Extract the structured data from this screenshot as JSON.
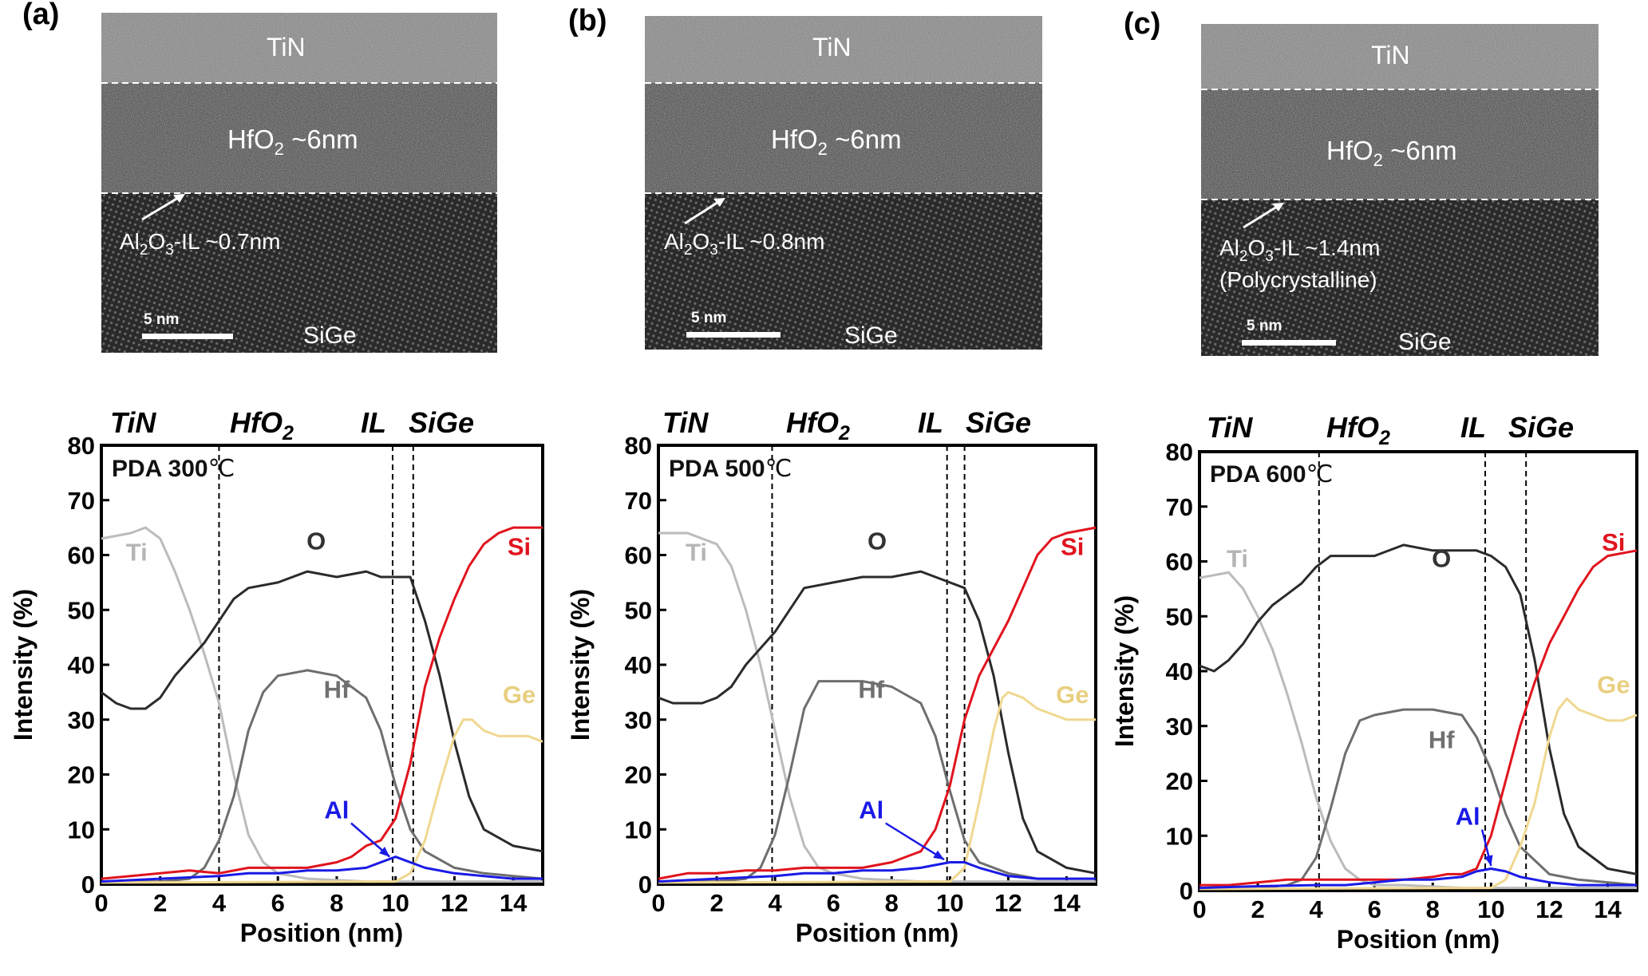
{
  "panels": [
    {
      "label": "(a)",
      "tem": {
        "top_layer": "TiN",
        "hfo2_main": "HfO",
        "hfo2_sub": "2",
        "hfo2_rest": " ~6nm",
        "il_a": "Al",
        "il_sub1": "2",
        "il_b": "O",
        "il_sub2": "3",
        "il_rest": "-IL ~0.7nm",
        "il_note": "",
        "scale": "5 nm",
        "substrate": "SiGe"
      },
      "plot": {
        "pda": "PDA 300",
        "pda_unit": "℃",
        "regions": {
          "tin": "TiN",
          "hfo2": "HfO",
          "hfo2_sub": "2",
          "il": "IL",
          "sige": "SiGe"
        },
        "boundaries": [
          4.0,
          9.9,
          10.6
        ]
      }
    },
    {
      "label": "(b)",
      "tem": {
        "top_layer": "TiN",
        "hfo2_main": "HfO",
        "hfo2_sub": "2",
        "hfo2_rest": " ~6nm",
        "il_a": "Al",
        "il_sub1": "2",
        "il_b": "O",
        "il_sub2": "3",
        "il_rest": "-IL ~0.8nm",
        "il_note": "",
        "scale": "5 nm",
        "substrate": "SiGe"
      },
      "plot": {
        "pda": "PDA 500",
        "pda_unit": "℃",
        "regions": {
          "tin": "TiN",
          "hfo2": "HfO",
          "hfo2_sub": "2",
          "il": "IL",
          "sige": "SiGe"
        },
        "boundaries": [
          3.9,
          9.9,
          10.5
        ]
      }
    },
    {
      "label": "(c)",
      "tem": {
        "top_layer": "TiN",
        "hfo2_main": "HfO",
        "hfo2_sub": "2",
        "hfo2_rest": " ~6nm",
        "il_a": "Al",
        "il_sub1": "2",
        "il_b": "O",
        "il_sub2": "3",
        "il_rest": "-IL ~1.4nm",
        "il_note": "(Polycrystalline)",
        "scale": "5 nm",
        "substrate": "SiGe"
      },
      "plot": {
        "pda": "PDA 600",
        "pda_unit": "℃",
        "regions": {
          "tin": "TiN",
          "hfo2": "HfO",
          "hfo2_sub": "2",
          "il": "IL",
          "sige": "SiGe"
        },
        "boundaries": [
          4.1,
          9.8,
          11.2
        ]
      }
    }
  ],
  "chart_data": [
    {
      "type": "line",
      "title": "PDA 300℃",
      "xlabel": "Position (nm)",
      "ylabel": "Intensity (%)",
      "xlim": [
        0,
        15
      ],
      "ylim": [
        0,
        80
      ],
      "xticks": [
        0,
        2,
        4,
        6,
        8,
        10,
        12,
        14
      ],
      "yticks": [
        0,
        10,
        20,
        30,
        40,
        50,
        60,
        70,
        80
      ],
      "series": [
        {
          "name": "Ti",
          "color": "#bbbbbb",
          "x": [
            0,
            1,
            1.5,
            2,
            2.5,
            3,
            3.5,
            4,
            4.5,
            5,
            5.5,
            6,
            7,
            9,
            15
          ],
          "values": [
            63,
            64,
            65,
            63,
            57,
            50,
            42,
            33,
            20,
            9,
            4,
            2,
            1,
            0.5,
            0.5
          ]
        },
        {
          "name": "O",
          "color": "#2b2b2b",
          "x": [
            0,
            0.5,
            1,
            1.5,
            2,
            2.5,
            3,
            3.5,
            4,
            4.5,
            5,
            6,
            7,
            8,
            9,
            9.5,
            10,
            10.5,
            11,
            11.5,
            12,
            12.5,
            13,
            14,
            15
          ],
          "values": [
            35,
            33,
            32,
            32,
            34,
            38,
            41,
            44,
            48,
            52,
            54,
            55,
            57,
            56,
            57,
            56,
            56,
            56,
            48,
            38,
            26,
            16,
            10,
            7,
            6
          ]
        },
        {
          "name": "Hf",
          "color": "#6e6e6e",
          "x": [
            0,
            2,
            3,
            3.5,
            4,
            4.5,
            5,
            5.5,
            6,
            7,
            8,
            9,
            9.5,
            10,
            10.5,
            11,
            12,
            13,
            15
          ],
          "values": [
            0.5,
            0.5,
            1,
            3,
            8,
            16,
            28,
            35,
            38,
            39,
            38,
            34,
            28,
            18,
            10,
            6,
            3,
            2,
            1
          ]
        },
        {
          "name": "Si",
          "color": "#e0141e",
          "x": [
            0,
            1,
            2,
            3,
            4,
            5,
            6,
            7,
            8,
            8.5,
            9,
            9.5,
            10,
            10.5,
            11,
            11.5,
            12,
            12.5,
            13,
            13.5,
            14,
            15
          ],
          "values": [
            1,
            1.5,
            2,
            2.5,
            2,
            3,
            3,
            3,
            4,
            5,
            7,
            8,
            12,
            22,
            36,
            45,
            52,
            58,
            62,
            64,
            65,
            65
          ]
        },
        {
          "name": "Ge",
          "color": "#f0d890",
          "x": [
            0,
            10,
            10.5,
            11,
            11.5,
            12,
            12.3,
            12.6,
            13,
            13.5,
            14,
            14.5,
            15
          ],
          "values": [
            0.3,
            0.5,
            2,
            8,
            18,
            27,
            30,
            30,
            28,
            27,
            27,
            27,
            26
          ]
        },
        {
          "name": "Al",
          "color": "#1a1ae6",
          "x": [
            0,
            2,
            4,
            5,
            6,
            7,
            8,
            9,
            9.5,
            10,
            10.5,
            11,
            12,
            13,
            14,
            15
          ],
          "values": [
            0.5,
            1,
            1.5,
            2,
            2,
            2.5,
            2.5,
            3,
            4,
            5,
            4,
            3,
            2,
            1.5,
            1,
            1
          ]
        }
      ],
      "annotations": [
        "Ti",
        "O",
        "Hf",
        "Si",
        "Ge",
        "Al"
      ]
    },
    {
      "type": "line",
      "title": "PDA 500℃",
      "xlabel": "Position (nm)",
      "ylabel": "Intensity (%)",
      "xlim": [
        0,
        15
      ],
      "ylim": [
        0,
        80
      ],
      "xticks": [
        0,
        2,
        4,
        6,
        8,
        10,
        12,
        14
      ],
      "yticks": [
        0,
        10,
        20,
        30,
        40,
        50,
        60,
        70,
        80
      ],
      "series": [
        {
          "name": "Ti",
          "color": "#bbbbbb",
          "x": [
            0,
            1,
            1.5,
            2,
            2.5,
            3,
            3.5,
            4,
            4.5,
            5,
            5.5,
            6,
            7,
            9,
            15
          ],
          "values": [
            64,
            64,
            63,
            62,
            58,
            50,
            40,
            28,
            16,
            7,
            3,
            2,
            1,
            0.5,
            0.5
          ]
        },
        {
          "name": "O",
          "color": "#2b2b2b",
          "x": [
            0,
            0.5,
            1,
            1.5,
            2,
            2.5,
            3,
            3.5,
            4,
            4.5,
            5,
            6,
            7,
            8,
            9,
            9.5,
            10,
            10.5,
            11,
            11.5,
            12,
            12.5,
            13,
            14,
            15
          ],
          "values": [
            34,
            33,
            33,
            33,
            34,
            36,
            40,
            43,
            46,
            50,
            54,
            55,
            56,
            56,
            57,
            56,
            55,
            54,
            48,
            38,
            24,
            12,
            6,
            3,
            2
          ]
        },
        {
          "name": "Hf",
          "color": "#6e6e6e",
          "x": [
            0,
            2,
            3,
            3.5,
            4,
            4.5,
            5,
            5.5,
            6,
            7,
            8,
            9,
            9.5,
            10,
            10.5,
            11,
            12,
            13,
            15
          ],
          "values": [
            0.5,
            0.5,
            1,
            3,
            9,
            20,
            32,
            37,
            37,
            37,
            36,
            33,
            27,
            17,
            8,
            4,
            2,
            1,
            1
          ]
        },
        {
          "name": "Si",
          "color": "#e0141e",
          "x": [
            0,
            1,
            2,
            3,
            4,
            5,
            6,
            7,
            8,
            8.5,
            9,
            9.5,
            10,
            10.5,
            11,
            11.5,
            12,
            12.5,
            13,
            13.5,
            14,
            15
          ],
          "values": [
            1,
            2,
            2,
            2.5,
            2.5,
            3,
            3,
            3,
            4,
            5,
            6,
            10,
            18,
            30,
            38,
            43,
            48,
            54,
            60,
            63,
            64,
            65
          ]
        },
        {
          "name": "Ge",
          "color": "#f0d890",
          "x": [
            0,
            10,
            10.5,
            11,
            11.5,
            11.8,
            12,
            12.5,
            13,
            13.5,
            14,
            14.5,
            15
          ],
          "values": [
            0.3,
            0.5,
            3,
            15,
            28,
            34,
            35,
            34,
            32,
            31,
            30,
            30,
            30
          ]
        },
        {
          "name": "Al",
          "color": "#1a1ae6",
          "x": [
            0,
            2,
            4,
            5,
            6,
            7,
            8,
            9,
            9.5,
            10,
            10.5,
            11,
            12,
            13,
            14,
            15
          ],
          "values": [
            0.5,
            1,
            1.5,
            2,
            2,
            2.5,
            2.5,
            3,
            3.5,
            4,
            4,
            3,
            1.5,
            1,
            1,
            1
          ]
        }
      ],
      "annotations": [
        "Ti",
        "O",
        "Hf",
        "Si",
        "Ge",
        "Al"
      ]
    },
    {
      "type": "line",
      "title": "PDA 600℃",
      "xlabel": "Position (nm)",
      "ylabel": "Intensity (%)",
      "xlim": [
        0,
        15
      ],
      "ylim": [
        0,
        80
      ],
      "xticks": [
        0,
        2,
        4,
        6,
        8,
        10,
        12,
        14
      ],
      "yticks": [
        0,
        10,
        20,
        30,
        40,
        50,
        60,
        70,
        80
      ],
      "series": [
        {
          "name": "Ti",
          "color": "#bbbbbb",
          "x": [
            0,
            1,
            1.5,
            2,
            2.5,
            3,
            3.5,
            4,
            4.5,
            5,
            5.5,
            6,
            7,
            9,
            15
          ],
          "values": [
            57,
            58,
            55,
            50,
            44,
            36,
            27,
            17,
            9,
            4,
            2,
            1,
            1,
            0.5,
            0.5
          ]
        },
        {
          "name": "O",
          "color": "#2b2b2b",
          "x": [
            0,
            0.5,
            1,
            1.5,
            2,
            2.5,
            3,
            3.5,
            4,
            4.5,
            5,
            6,
            7,
            8,
            9,
            9.5,
            10,
            10.5,
            11,
            11.5,
            12,
            12.5,
            13,
            14,
            15
          ],
          "values": [
            41,
            40,
            42,
            45,
            49,
            52,
            54,
            56,
            59,
            61,
            61,
            61,
            63,
            62,
            62,
            62,
            61,
            59,
            54,
            42,
            26,
            14,
            8,
            4,
            3
          ]
        },
        {
          "name": "Hf",
          "color": "#6e6e6e",
          "x": [
            0,
            2,
            3,
            3.5,
            4,
            4.5,
            5,
            5.5,
            6,
            7,
            8,
            9,
            9.5,
            10,
            10.5,
            11,
            12,
            13,
            15
          ],
          "values": [
            0.5,
            0.5,
            1,
            2,
            6,
            15,
            25,
            31,
            32,
            33,
            33,
            32,
            28,
            22,
            14,
            8,
            3,
            2,
            1
          ]
        },
        {
          "name": "Si",
          "color": "#e0141e",
          "x": [
            0,
            1,
            2,
            3,
            4,
            5,
            6,
            7,
            8,
            8.5,
            9,
            9.5,
            10,
            10.5,
            11,
            11.5,
            12,
            12.5,
            13,
            13.5,
            14,
            15
          ],
          "values": [
            1,
            1,
            1.5,
            2,
            2,
            2,
            2,
            2,
            2.5,
            3,
            3,
            4,
            10,
            20,
            30,
            38,
            45,
            50,
            55,
            59,
            61,
            62
          ]
        },
        {
          "name": "Ge",
          "color": "#f0d890",
          "x": [
            0,
            10,
            10.5,
            11,
            11.5,
            12,
            12.3,
            12.6,
            13,
            13.5,
            14,
            14.5,
            15
          ],
          "values": [
            0.3,
            0.5,
            2,
            8,
            16,
            28,
            33,
            35,
            33,
            32,
            31,
            31,
            32
          ]
        },
        {
          "name": "Al",
          "color": "#1a1ae6",
          "x": [
            0,
            2,
            4,
            5,
            6,
            7,
            8,
            9,
            9.5,
            10,
            10.5,
            11,
            12,
            13,
            14,
            15
          ],
          "values": [
            0.5,
            0.8,
            1,
            1,
            1.5,
            2,
            2,
            2.5,
            3.5,
            4,
            3.5,
            2.5,
            1.5,
            1,
            1,
            1
          ]
        }
      ],
      "annotations": [
        "Ti",
        "O",
        "Hf",
        "Si",
        "Ge",
        "Al"
      ]
    }
  ],
  "label_colors": {
    "Ti": "#b5b5b5",
    "O": "#333333",
    "Hf": "#707070",
    "Si": "#e0141e",
    "Ge": "#e8cf80",
    "Al": "#1a1ae6"
  }
}
